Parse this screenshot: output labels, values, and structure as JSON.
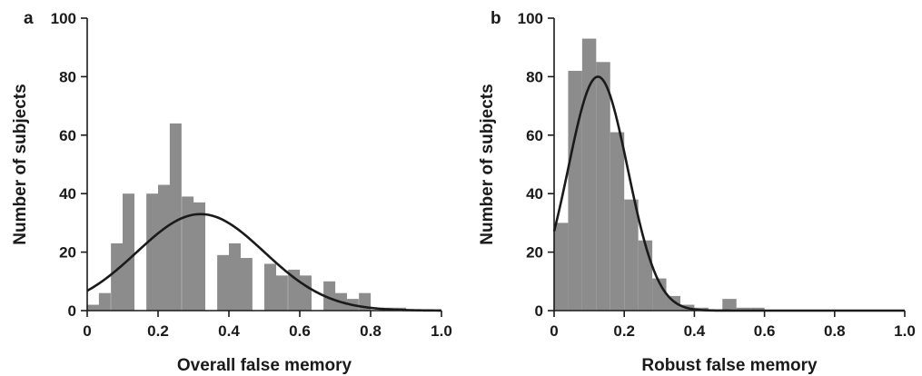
{
  "colors": {
    "bar": "#8c8c8c",
    "curve": "#1a1a1a",
    "axis": "#1a1a1a"
  },
  "chart_data": [
    {
      "type": "bar",
      "panel_label": "a",
      "title": "",
      "xlabel": "Overall false memory",
      "ylabel": "Number of subjects",
      "xlim": [
        0,
        1.0
      ],
      "ylim": [
        0,
        100
      ],
      "xticks": [
        "0",
        "0.2",
        "0.4",
        "0.6",
        "0.8",
        "1.0"
      ],
      "xtick_values": [
        0,
        0.2,
        0.4,
        0.6,
        0.8,
        1.0
      ],
      "yticks": [
        "0",
        "20",
        "40",
        "60",
        "80",
        "100"
      ],
      "ytick_values": [
        0,
        20,
        40,
        60,
        80,
        100
      ],
      "grid": false,
      "bin_width": 0.0333,
      "bins": [
        {
          "x0": 0.0,
          "value": 2
        },
        {
          "x0": 0.033,
          "value": 6
        },
        {
          "x0": 0.067,
          "value": 23
        },
        {
          "x0": 0.1,
          "value": 40
        },
        {
          "x0": 0.167,
          "value": 40
        },
        {
          "x0": 0.2,
          "value": 43
        },
        {
          "x0": 0.233,
          "value": 64
        },
        {
          "x0": 0.267,
          "value": 39
        },
        {
          "x0": 0.3,
          "value": 37
        },
        {
          "x0": 0.367,
          "value": 19
        },
        {
          "x0": 0.4,
          "value": 23
        },
        {
          "x0": 0.433,
          "value": 18
        },
        {
          "x0": 0.5,
          "value": 16
        },
        {
          "x0": 0.533,
          "value": 12
        },
        {
          "x0": 0.567,
          "value": 14
        },
        {
          "x0": 0.6,
          "value": 12
        },
        {
          "x0": 0.667,
          "value": 10
        },
        {
          "x0": 0.7,
          "value": 6
        },
        {
          "x0": 0.733,
          "value": 4
        },
        {
          "x0": 0.767,
          "value": 6
        },
        {
          "x0": 0.833,
          "value": 1
        },
        {
          "x0": 0.867,
          "value": 1
        }
      ],
      "fit_curve": {
        "type": "normal",
        "mean": 0.32,
        "sd": 0.18,
        "peak": 33
      }
    },
    {
      "type": "bar",
      "panel_label": "b",
      "title": "",
      "xlabel": "Robust false memory",
      "ylabel": "Number of subjects",
      "xlim": [
        0,
        1.0
      ],
      "ylim": [
        0,
        100
      ],
      "xticks": [
        "0",
        "0.2",
        "0.4",
        "0.6",
        "0.8",
        "1.0"
      ],
      "xtick_values": [
        0,
        0.2,
        0.4,
        0.6,
        0.8,
        1.0
      ],
      "yticks": [
        "0",
        "20",
        "40",
        "60",
        "80",
        "100"
      ],
      "ytick_values": [
        0,
        20,
        40,
        60,
        80,
        100
      ],
      "grid": false,
      "bin_width": 0.04,
      "bins": [
        {
          "x0": 0.0,
          "value": 30
        },
        {
          "x0": 0.04,
          "value": 82
        },
        {
          "x0": 0.08,
          "value": 93
        },
        {
          "x0": 0.12,
          "value": 85
        },
        {
          "x0": 0.16,
          "value": 61
        },
        {
          "x0": 0.2,
          "value": 38
        },
        {
          "x0": 0.24,
          "value": 24
        },
        {
          "x0": 0.28,
          "value": 11
        },
        {
          "x0": 0.32,
          "value": 5
        },
        {
          "x0": 0.36,
          "value": 2
        },
        {
          "x0": 0.4,
          "value": 1
        },
        {
          "x0": 0.48,
          "value": 4
        },
        {
          "x0": 0.52,
          "value": 1
        },
        {
          "x0": 0.56,
          "value": 1
        }
      ],
      "fit_curve": {
        "type": "normal",
        "mean": 0.125,
        "sd": 0.085,
        "peak": 80
      }
    }
  ]
}
